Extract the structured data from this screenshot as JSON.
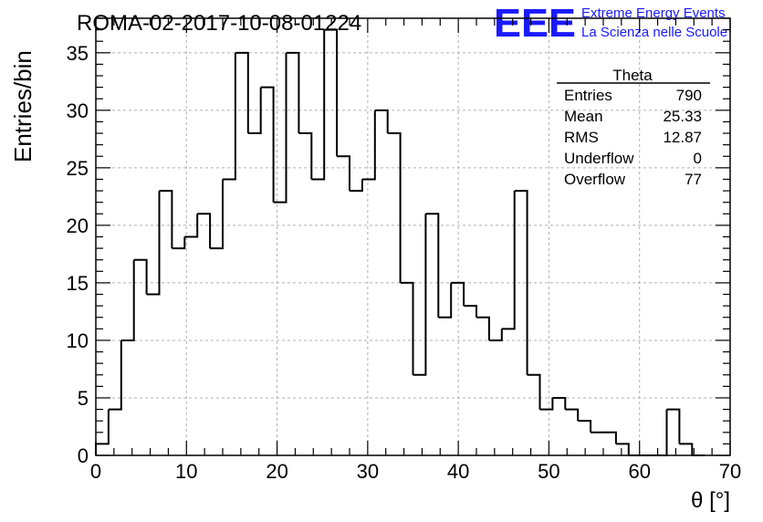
{
  "header": {
    "title": "ROMA-02-2017-10-08-01224",
    "logo_text": "EEE",
    "logo_line1": "Extreme Energy Events",
    "logo_line2": "La Scienza nelle Scuole",
    "logo_color": "#1a1aff"
  },
  "stats": {
    "name": "Theta",
    "rows": [
      {
        "label": "Entries",
        "value": "790"
      },
      {
        "label": "Mean",
        "value": "25.33"
      },
      {
        "label": "RMS",
        "value": "12.87"
      },
      {
        "label": "Underflow",
        "value": "0"
      },
      {
        "label": "Overflow",
        "value": "77"
      }
    ]
  },
  "chart_data": {
    "type": "bar",
    "histogram": true,
    "xlabel": "θ [°]",
    "ylabel": "Entries/bin",
    "xlim": [
      0,
      70
    ],
    "ylim": [
      0,
      38
    ],
    "bin_width": 1.4,
    "bin_edges_start": 0,
    "values": [
      1,
      4,
      10,
      17,
      14,
      23,
      18,
      19,
      21,
      18,
      24,
      35,
      28,
      32,
      22,
      35,
      28,
      24,
      37,
      26,
      23,
      24,
      30,
      28,
      15,
      7,
      21,
      12,
      15,
      13,
      12,
      10,
      11,
      23,
      7,
      4,
      5,
      4,
      3,
      2,
      2,
      1,
      0,
      0,
      0,
      4,
      1,
      0
    ],
    "x_ticks": [
      0,
      10,
      20,
      30,
      40,
      50,
      60,
      70
    ],
    "y_ticks": [
      0,
      5,
      10,
      15,
      20,
      25,
      30,
      35
    ],
    "grid": true,
    "line_color": "#000000"
  }
}
